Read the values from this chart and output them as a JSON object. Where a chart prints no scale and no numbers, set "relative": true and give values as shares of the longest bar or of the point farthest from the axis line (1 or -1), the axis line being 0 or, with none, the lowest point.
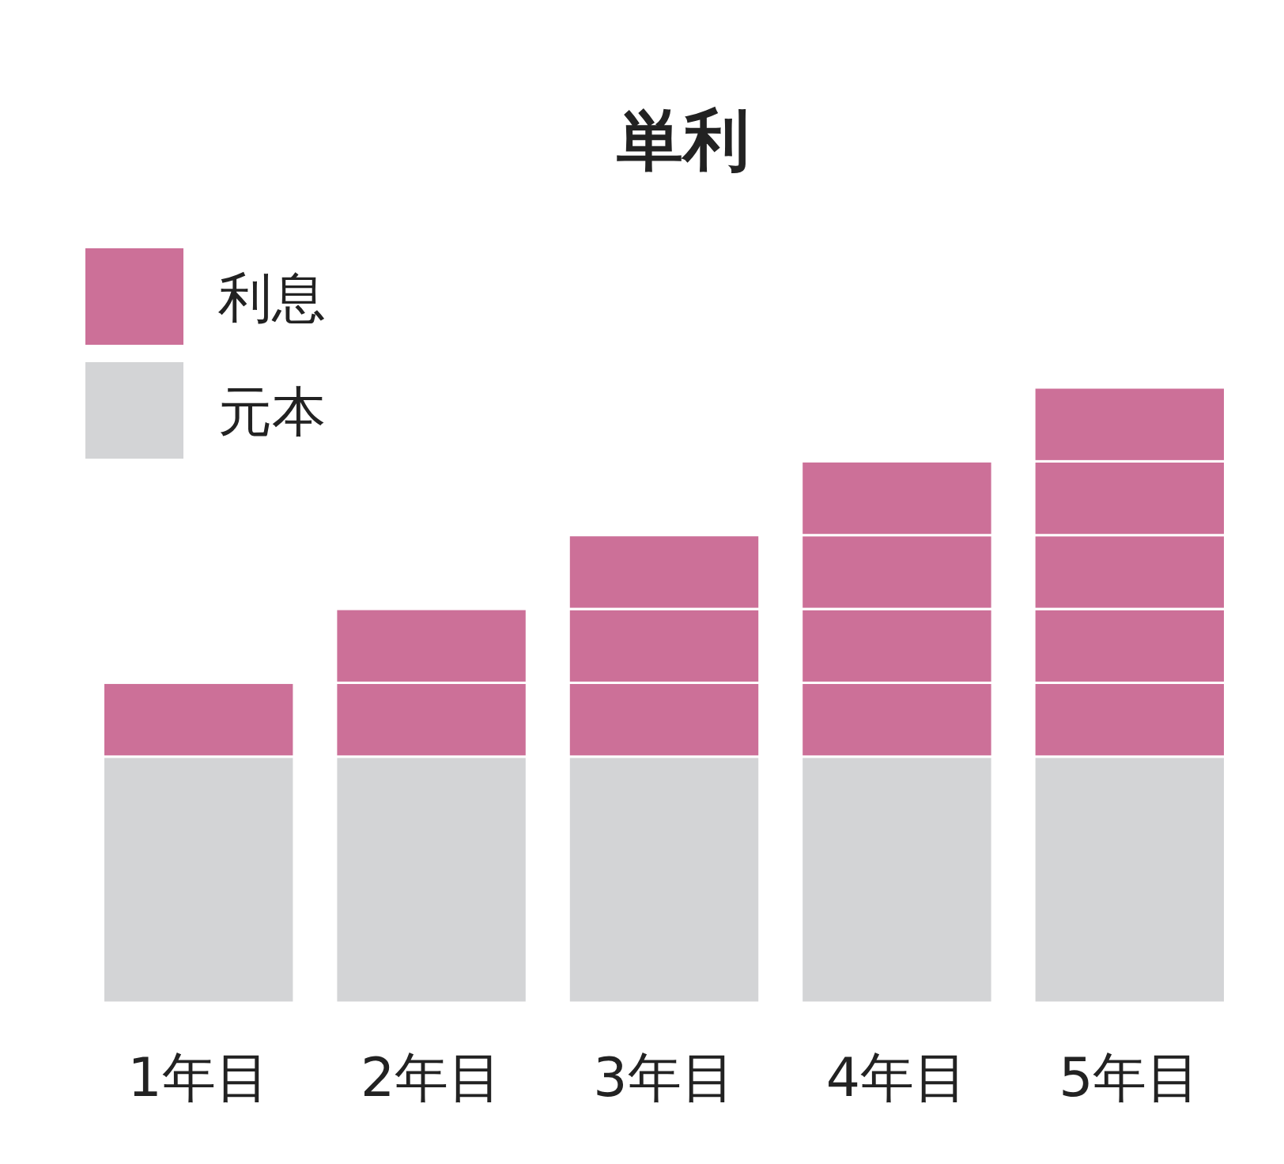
{
  "chart_data": {
    "type": "bar",
    "title": "単利",
    "stacked": true,
    "relative": true,
    "legend": "top left",
    "categories": [
      "1年目",
      "2年目",
      "3年目",
      "4年目",
      "5年目"
    ],
    "series": [
      {
        "name": "元本",
        "color": "#d3d4d6",
        "values": [
          0.4,
          0.4,
          0.4,
          0.4,
          0.4
        ]
      },
      {
        "name": "利息",
        "color": "#cc7098",
        "values": [
          0.12,
          0.12,
          0.12,
          0.12,
          0.12
        ]
      },
      {
        "color": "#cc7098",
        "values": [
          null,
          0.12,
          0.12,
          0.12,
          0.12
        ]
      },
      {
        "color": "#cc7098",
        "values": [
          null,
          null,
          0.12,
          0.12,
          0.12
        ]
      },
      {
        "color": "#cc7098",
        "values": [
          null,
          null,
          null,
          0.12,
          0.12
        ]
      },
      {
        "color": "#cc7098",
        "values": [
          null,
          null,
          null,
          null,
          0.12
        ]
      }
    ]
  }
}
